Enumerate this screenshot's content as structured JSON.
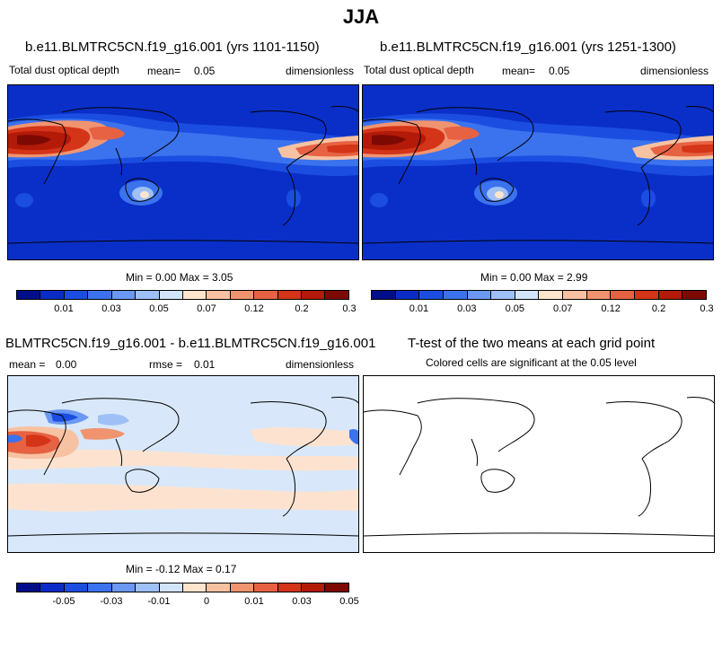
{
  "title": "JJA",
  "panels": [
    {
      "title": "b.e11.BLMTRC5CN.f19_g16.001 (yrs 1101-1150)",
      "variable": "Total dust optical depth",
      "mean_label": "mean=",
      "mean_value": "0.05",
      "units": "dimensionless",
      "minmax": "Min =   0.00 Max =   3.05",
      "colorbar_ticks": [
        "0.01",
        "0.03",
        "0.05",
        "0.07",
        "0.12",
        "0.2",
        "0.3"
      ]
    },
    {
      "title": "b.e11.BLMTRC5CN.f19_g16.001 (yrs 1251-1300)",
      "variable": "Total dust optical depth",
      "mean_label": "mean=",
      "mean_value": "0.05",
      "units": "dimensionless",
      "minmax": "Min =   0.00 Max =   2.99",
      "colorbar_ticks": [
        "0.01",
        "0.03",
        "0.05",
        "0.07",
        "0.12",
        "0.2",
        "0.3"
      ]
    },
    {
      "title": "BLMTRC5CN.f19_g16.001 - b.e11.BLMTRC5CN.f19_g16.001",
      "mean_label": "mean =",
      "mean_value": "0.00",
      "rmse_label": "rmse =",
      "rmse_value": "0.01",
      "units": "dimensionless",
      "minmax": "Min =  -0.12 Max =   0.17",
      "colorbar_ticks": [
        "-0.05",
        "-0.03",
        "-0.01",
        "0",
        "0.01",
        "0.03",
        "0.05"
      ]
    },
    {
      "title": "T-test of the two means at each grid point",
      "subtitle": "Colored cells are significant at the 0.05 level"
    }
  ],
  "colors": {
    "palette": [
      "#000e8a",
      "#0a2cc6",
      "#1b4ee0",
      "#3b72ee",
      "#6a98f2",
      "#9ec0f6",
      "#d2e4fa",
      "#fde4cc",
      "#f7c2a2",
      "#f09470",
      "#e66242",
      "#d43418",
      "#b31a08",
      "#7c0a02"
    ],
    "ocean_low": "#0a2fc8",
    "diff_neutral": "#d8e8fa",
    "diff_warm": "#fde3cf"
  }
}
